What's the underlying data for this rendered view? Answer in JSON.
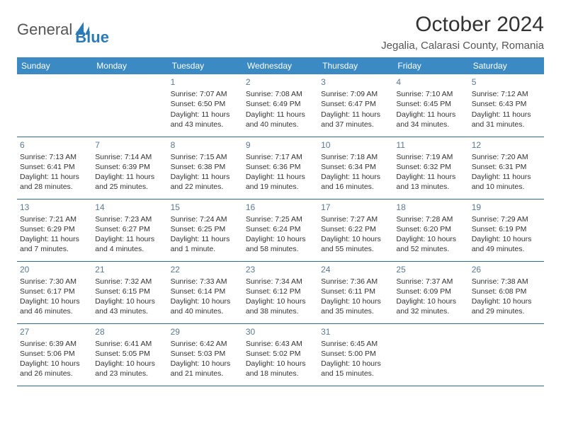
{
  "brand": {
    "name_part1": "General",
    "name_part2": "Blue"
  },
  "title": "October 2024",
  "location": "Jegalia, Calarasi County, Romania",
  "header_bg": "#3b8ac4",
  "header_fg": "#ffffff",
  "row_border_color": "#2a6a9c",
  "daynum_color": "#5a7a94",
  "text_color": "#333333",
  "dayNames": [
    "Sunday",
    "Monday",
    "Tuesday",
    "Wednesday",
    "Thursday",
    "Friday",
    "Saturday"
  ],
  "weeks": [
    [
      null,
      null,
      {
        "d": "1",
        "sr": "7:07 AM",
        "ss": "6:50 PM",
        "dl": "11 hours and 43 minutes."
      },
      {
        "d": "2",
        "sr": "7:08 AM",
        "ss": "6:49 PM",
        "dl": "11 hours and 40 minutes."
      },
      {
        "d": "3",
        "sr": "7:09 AM",
        "ss": "6:47 PM",
        "dl": "11 hours and 37 minutes."
      },
      {
        "d": "4",
        "sr": "7:10 AM",
        "ss": "6:45 PM",
        "dl": "11 hours and 34 minutes."
      },
      {
        "d": "5",
        "sr": "7:12 AM",
        "ss": "6:43 PM",
        "dl": "11 hours and 31 minutes."
      }
    ],
    [
      {
        "d": "6",
        "sr": "7:13 AM",
        "ss": "6:41 PM",
        "dl": "11 hours and 28 minutes."
      },
      {
        "d": "7",
        "sr": "7:14 AM",
        "ss": "6:39 PM",
        "dl": "11 hours and 25 minutes."
      },
      {
        "d": "8",
        "sr": "7:15 AM",
        "ss": "6:38 PM",
        "dl": "11 hours and 22 minutes."
      },
      {
        "d": "9",
        "sr": "7:17 AM",
        "ss": "6:36 PM",
        "dl": "11 hours and 19 minutes."
      },
      {
        "d": "10",
        "sr": "7:18 AM",
        "ss": "6:34 PM",
        "dl": "11 hours and 16 minutes."
      },
      {
        "d": "11",
        "sr": "7:19 AM",
        "ss": "6:32 PM",
        "dl": "11 hours and 13 minutes."
      },
      {
        "d": "12",
        "sr": "7:20 AM",
        "ss": "6:31 PM",
        "dl": "11 hours and 10 minutes."
      }
    ],
    [
      {
        "d": "13",
        "sr": "7:21 AM",
        "ss": "6:29 PM",
        "dl": "11 hours and 7 minutes."
      },
      {
        "d": "14",
        "sr": "7:23 AM",
        "ss": "6:27 PM",
        "dl": "11 hours and 4 minutes."
      },
      {
        "d": "15",
        "sr": "7:24 AM",
        "ss": "6:25 PM",
        "dl": "11 hours and 1 minute."
      },
      {
        "d": "16",
        "sr": "7:25 AM",
        "ss": "6:24 PM",
        "dl": "10 hours and 58 minutes."
      },
      {
        "d": "17",
        "sr": "7:27 AM",
        "ss": "6:22 PM",
        "dl": "10 hours and 55 minutes."
      },
      {
        "d": "18",
        "sr": "7:28 AM",
        "ss": "6:20 PM",
        "dl": "10 hours and 52 minutes."
      },
      {
        "d": "19",
        "sr": "7:29 AM",
        "ss": "6:19 PM",
        "dl": "10 hours and 49 minutes."
      }
    ],
    [
      {
        "d": "20",
        "sr": "7:30 AM",
        "ss": "6:17 PM",
        "dl": "10 hours and 46 minutes."
      },
      {
        "d": "21",
        "sr": "7:32 AM",
        "ss": "6:15 PM",
        "dl": "10 hours and 43 minutes."
      },
      {
        "d": "22",
        "sr": "7:33 AM",
        "ss": "6:14 PM",
        "dl": "10 hours and 40 minutes."
      },
      {
        "d": "23",
        "sr": "7:34 AM",
        "ss": "6:12 PM",
        "dl": "10 hours and 38 minutes."
      },
      {
        "d": "24",
        "sr": "7:36 AM",
        "ss": "6:11 PM",
        "dl": "10 hours and 35 minutes."
      },
      {
        "d": "25",
        "sr": "7:37 AM",
        "ss": "6:09 PM",
        "dl": "10 hours and 32 minutes."
      },
      {
        "d": "26",
        "sr": "7:38 AM",
        "ss": "6:08 PM",
        "dl": "10 hours and 29 minutes."
      }
    ],
    [
      {
        "d": "27",
        "sr": "6:39 AM",
        "ss": "5:06 PM",
        "dl": "10 hours and 26 minutes."
      },
      {
        "d": "28",
        "sr": "6:41 AM",
        "ss": "5:05 PM",
        "dl": "10 hours and 23 minutes."
      },
      {
        "d": "29",
        "sr": "6:42 AM",
        "ss": "5:03 PM",
        "dl": "10 hours and 21 minutes."
      },
      {
        "d": "30",
        "sr": "6:43 AM",
        "ss": "5:02 PM",
        "dl": "10 hours and 18 minutes."
      },
      {
        "d": "31",
        "sr": "6:45 AM",
        "ss": "5:00 PM",
        "dl": "10 hours and 15 minutes."
      },
      null,
      null
    ]
  ],
  "labels": {
    "sunrise": "Sunrise:",
    "sunset": "Sunset:",
    "daylight": "Daylight:"
  }
}
